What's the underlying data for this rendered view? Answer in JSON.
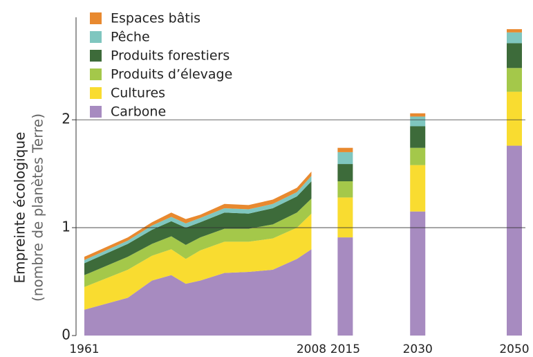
{
  "chart_data": [
    {
      "type": "area",
      "ylabel": [
        "Empreinte écologique",
        "(nombre de planètes Terre)"
      ],
      "x": [
        1961,
        1970,
        1975,
        1979,
        1982,
        1985,
        1990,
        1995,
        2000,
        2005,
        2008
      ],
      "series": [
        {
          "name": "Carbone",
          "color": "#a78bc0",
          "values": [
            0.24,
            0.35,
            0.51,
            0.56,
            0.48,
            0.51,
            0.58,
            0.59,
            0.61,
            0.71,
            0.8
          ]
        },
        {
          "name": "Cultures",
          "color": "#f9dc30",
          "values": [
            0.21,
            0.26,
            0.23,
            0.24,
            0.23,
            0.28,
            0.29,
            0.28,
            0.29,
            0.29,
            0.33
          ]
        },
        {
          "name": "Produits d’élevage",
          "color": "#a4c84a",
          "values": [
            0.11,
            0.12,
            0.11,
            0.12,
            0.13,
            0.12,
            0.12,
            0.12,
            0.13,
            0.14,
            0.14
          ]
        },
        {
          "name": "Produits forestiers",
          "color": "#3d6b3a",
          "values": [
            0.11,
            0.12,
            0.13,
            0.14,
            0.16,
            0.14,
            0.15,
            0.14,
            0.15,
            0.15,
            0.16
          ]
        },
        {
          "name": "Pêche",
          "color": "#7fc6bf",
          "values": [
            0.03,
            0.03,
            0.04,
            0.04,
            0.04,
            0.04,
            0.04,
            0.04,
            0.04,
            0.04,
            0.05
          ]
        },
        {
          "name": "Espaces bâtis",
          "color": "#e8892f",
          "values": [
            0.03,
            0.03,
            0.03,
            0.04,
            0.04,
            0.03,
            0.04,
            0.04,
            0.04,
            0.04,
            0.04
          ]
        }
      ],
      "xlim": [
        1961,
        2050
      ],
      "xticks": [
        1961,
        2008,
        2015,
        2030,
        2050
      ],
      "ylim": [
        0,
        2.95
      ],
      "yticks": [
        0,
        1,
        2
      ],
      "grid": true
    },
    {
      "type": "bar",
      "x": [
        2015,
        2030,
        2050
      ],
      "series": [
        {
          "name": "Carbone",
          "color": "#a78bc0",
          "values": [
            0.91,
            1.15,
            1.76
          ]
        },
        {
          "name": "Cultures",
          "color": "#f9dc30",
          "values": [
            0.37,
            0.43,
            0.5
          ]
        },
        {
          "name": "Produits d’élevage",
          "color": "#a4c84a",
          "values": [
            0.15,
            0.16,
            0.22
          ]
        },
        {
          "name": "Produits forestiers",
          "color": "#3d6b3a",
          "values": [
            0.16,
            0.2,
            0.23
          ]
        },
        {
          "name": "Pêche",
          "color": "#7fc6bf",
          "values": [
            0.11,
            0.09,
            0.1
          ]
        },
        {
          "name": "Espaces bâtis",
          "color": "#e8892f",
          "values": [
            0.04,
            0.03,
            0.03
          ]
        }
      ],
      "xlim": [
        1961,
        2050
      ],
      "ylim": [
        0,
        2.95
      ]
    }
  ]
}
